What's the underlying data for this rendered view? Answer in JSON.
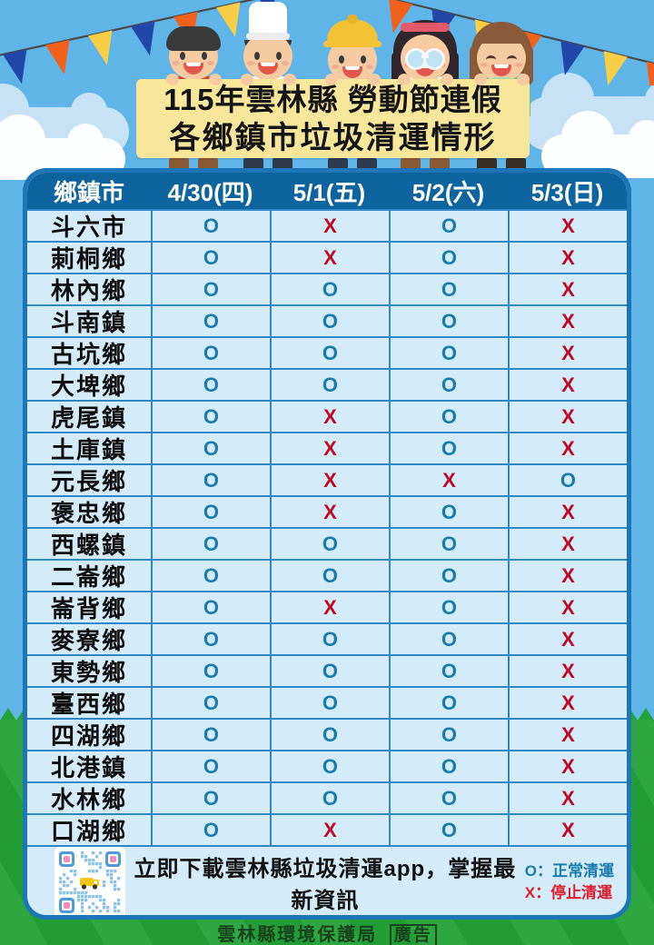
{
  "title": {
    "line1": "115年雲林縣 勞動節連假",
    "line2": "各鄉鎮市垃圾清運情形"
  },
  "table": {
    "headers": [
      "鄉鎮市",
      "4/30(四)",
      "5/1(五)",
      "5/2(六)",
      "5/3(日)"
    ],
    "rows": [
      {
        "name": "斗六市",
        "values": [
          "O",
          "X",
          "O",
          "X"
        ]
      },
      {
        "name": "莿桐鄉",
        "values": [
          "O",
          "X",
          "O",
          "X"
        ]
      },
      {
        "name": "林內鄉",
        "values": [
          "O",
          "O",
          "O",
          "X"
        ]
      },
      {
        "name": "斗南鎮",
        "values": [
          "O",
          "O",
          "O",
          "X"
        ]
      },
      {
        "name": "古坑鄉",
        "values": [
          "O",
          "O",
          "O",
          "X"
        ]
      },
      {
        "name": "大埤鄉",
        "values": [
          "O",
          "O",
          "O",
          "X"
        ]
      },
      {
        "name": "虎尾鎮",
        "values": [
          "O",
          "X",
          "O",
          "X"
        ]
      },
      {
        "name": "土庫鎮",
        "values": [
          "O",
          "X",
          "O",
          "X"
        ]
      },
      {
        "name": "元長鄉",
        "values": [
          "O",
          "X",
          "X",
          "O"
        ]
      },
      {
        "name": "褒忠鄉",
        "values": [
          "O",
          "X",
          "O",
          "X"
        ]
      },
      {
        "name": "西螺鎮",
        "values": [
          "O",
          "O",
          "O",
          "X"
        ]
      },
      {
        "name": "二崙鄉",
        "values": [
          "O",
          "O",
          "O",
          "X"
        ]
      },
      {
        "name": "崙背鄉",
        "values": [
          "O",
          "X",
          "O",
          "X"
        ]
      },
      {
        "name": "麥寮鄉",
        "values": [
          "O",
          "O",
          "O",
          "X"
        ]
      },
      {
        "name": "東勢鄉",
        "values": [
          "O",
          "O",
          "O",
          "X"
        ]
      },
      {
        "name": "臺西鄉",
        "values": [
          "O",
          "O",
          "O",
          "X"
        ]
      },
      {
        "name": "四湖鄉",
        "values": [
          "O",
          "O",
          "O",
          "X"
        ]
      },
      {
        "name": "北港鎮",
        "values": [
          "O",
          "O",
          "O",
          "X"
        ]
      },
      {
        "name": "水林鄉",
        "values": [
          "O",
          "O",
          "O",
          "X"
        ]
      },
      {
        "name": "口湖鄉",
        "values": [
          "O",
          "X",
          "O",
          "X"
        ]
      }
    ]
  },
  "footer": {
    "app_text": "立即下載雲林縣垃圾清運app，掌握最新資訊",
    "legend_o": "O：正常清運",
    "legend_x": "X：停止清運",
    "qr_center_icon": "garbage-truck-icon"
  },
  "bottom": {
    "org": "雲林縣環境保護局",
    "ad_label": "廣告"
  },
  "scene": {
    "characters": [
      {
        "name": "worker-red-shirt-character",
        "type": "red"
      },
      {
        "name": "chef-character",
        "type": "chef"
      },
      {
        "name": "construction-worker-character",
        "type": "builder"
      },
      {
        "name": "lab-worker-character",
        "type": "goggles"
      },
      {
        "name": "girl-character",
        "type": "girl"
      }
    ],
    "decorations": [
      "bunting-flags-left",
      "bunting-flags-right",
      "cloud",
      "grass"
    ]
  },
  "colors": {
    "sky": "#5FB5E7",
    "grass": "#23A237",
    "banner": "#F8E79B",
    "title-text": "#141414",
    "card-border": "#1E76B8",
    "header-bg": "#0D649E",
    "header-text": "#FFFFFF",
    "cell-bg": "#D4ECFA",
    "grid": "#2F87C8",
    "row-text": "#0D0D0D",
    "mark-o": "#1A7CAD",
    "mark-x": "#C00823",
    "legend-o": "#1A7CAD",
    "legend-x": "#E11B2E",
    "flag-blue": "#2148A8",
    "flag-orange": "#F2611B",
    "flag-yellow": "#F7CE46",
    "cloud-blue": "#C7E2F5",
    "cloud-white": "#FDFEFF",
    "skin": "#F6CBA2",
    "qr-module": "#8CC3E9",
    "qr-finder": "#4D9BD8",
    "qr-finder-center": "#F08CC0",
    "truck-yellow": "#F5C518",
    "org-text": "#17441D"
  }
}
